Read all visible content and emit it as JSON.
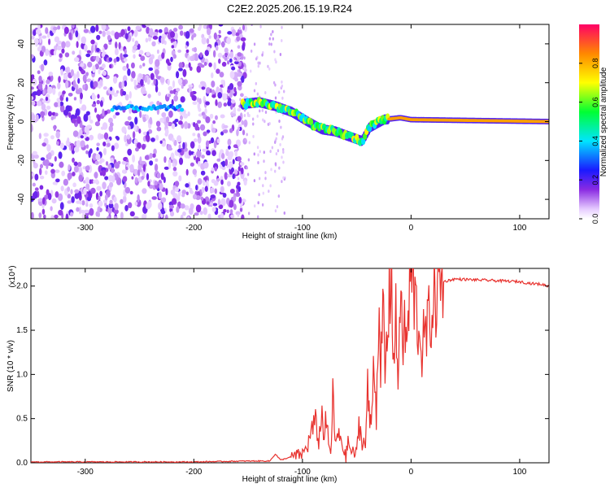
{
  "title": "C2E2.2025.206.15.19.R24",
  "colorbar": {
    "label": "Normalized spectral amplitude",
    "ticks": [
      0.0,
      0.2,
      0.4,
      0.6,
      0.8
    ],
    "range": [
      0,
      1
    ]
  },
  "chart_data": [
    {
      "type": "heatmap",
      "xlabel": "Height of straight line (km)",
      "ylabel": "Frequency (Hz)",
      "xlim": [
        -350,
        127
      ],
      "ylim": [
        -50,
        50
      ],
      "xticks": [
        -300,
        -200,
        -100,
        0,
        100
      ],
      "yticks": [
        -40,
        -20,
        0,
        20,
        40
      ],
      "signal_ridge": [
        {
          "x": -155,
          "y": 9
        },
        {
          "x": -140,
          "y": 10
        },
        {
          "x": -125,
          "y": 8
        },
        {
          "x": -110,
          "y": 5
        },
        {
          "x": -95,
          "y": 0
        },
        {
          "x": -82,
          "y": -4
        },
        {
          "x": -70,
          "y": -5
        },
        {
          "x": -55,
          "y": -8
        },
        {
          "x": -45,
          "y": -10
        },
        {
          "x": -38,
          "y": -3
        },
        {
          "x": -25,
          "y": 1
        },
        {
          "x": -10,
          "y": 2
        },
        {
          "x": 0,
          "y": 1
        },
        {
          "x": 127,
          "y": 0
        }
      ],
      "noise_region": {
        "x": [
          -350,
          -160
        ],
        "freq_band": [
          -50,
          50
        ]
      },
      "weak_band": {
        "x": [
          -275,
          -210
        ],
        "y": 7
      }
    },
    {
      "type": "line",
      "xlabel": "Height of straight line (km)",
      "ylabel": "SNR (10 * v/v)",
      "y_multiplier": "(x10⁴)",
      "xlim": [
        -350,
        127
      ],
      "ylim": [
        0,
        2.2
      ],
      "xticks": [
        -300,
        -200,
        -100,
        0,
        100
      ],
      "yticks": [
        "0.0",
        "0.5",
        "1.0",
        "1.5",
        "2.0"
      ],
      "color": "#e8322e",
      "series": [
        {
          "x": [
            -350,
            -300,
            -250,
            -200,
            -150,
            -130,
            -125,
            -120,
            -115,
            -100,
            -95,
            -92,
            -88,
            -85,
            -82,
            -80,
            -78,
            -76,
            -74,
            -72,
            -70,
            -65,
            -60,
            -58,
            -55,
            -50,
            -48,
            -45,
            -42,
            -40,
            -38,
            -36,
            -34,
            -32,
            -30,
            -28,
            -26,
            -24,
            -22,
            -20,
            -18,
            -16,
            -14,
            -12,
            -10,
            -8,
            -6,
            -4,
            -2,
            0,
            5,
            10,
            15,
            20,
            25,
            30,
            40,
            60,
            80,
            100,
            110,
            120,
            127
          ],
          "y": [
            0.01,
            0.01,
            0.01,
            0.01,
            0.02,
            0.02,
            0.1,
            0.03,
            0.05,
            0.1,
            0.2,
            0.35,
            0.45,
            0.25,
            0.55,
            0.3,
            0.5,
            0.2,
            0.1,
            0.75,
            0.25,
            0.3,
            0.05,
            0.25,
            0.12,
            0.1,
            0.45,
            0.25,
            0.2,
            0.85,
            0.4,
            0.6,
            1.3,
            0.5,
            1.75,
            0.8,
            1.85,
            1.0,
            1.4,
            1.9,
            2.2,
            1.1,
            1.6,
            0.9,
            2.05,
            1.25,
            1.55,
            1.3,
            1.75,
            2.15,
            1.7,
            1.3,
            1.5,
            1.8,
            1.95,
            2.05,
            2.08,
            2.07,
            2.06,
            2.05,
            2.03,
            2.02,
            2.0
          ]
        }
      ]
    }
  ]
}
